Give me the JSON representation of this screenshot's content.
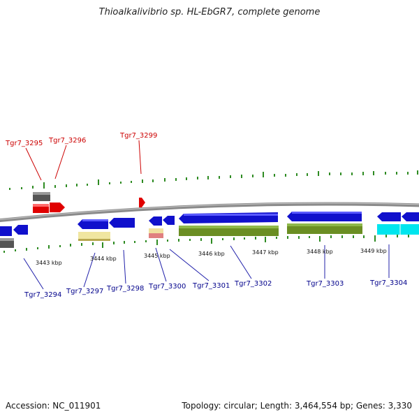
{
  "title": "Thioalkalivibrio sp. HL-EbGR7, complete genome",
  "footer": {
    "accession": "Accession: NC_011901",
    "topology": "Topology: circular; Length: 3,464,554 bp; Genes: 3,330"
  },
  "colors": {
    "forward_label": "#cc0000",
    "reverse_label": "#00008b",
    "backbone": "#8c8c8c",
    "cds_forward": "#ff0000",
    "cds_reverse": "#0000ee",
    "gc_tick": "#2e8b22"
  },
  "kbp_marks": [
    "3443 kbp",
    "3444 kbp",
    "3445 kbp",
    "3446 kbp",
    "3447 kbp",
    "3448 kbp",
    "3449 kbp"
  ],
  "forward_genes": [
    "Tgr7_3295",
    "Tgr7_3296",
    "Tgr7_3299"
  ],
  "reverse_genes": [
    "Tgr7_3294",
    "Tgr7_3297",
    "Tgr7_3298",
    "Tgr7_3300",
    "Tgr7_3301",
    "Tgr7_3302",
    "Tgr7_3303",
    "Tgr7_3304"
  ]
}
